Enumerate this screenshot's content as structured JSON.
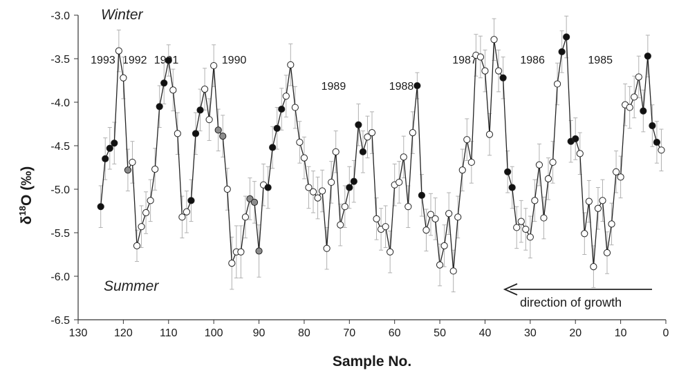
{
  "chart_data": {
    "type": "scatter",
    "xlabel": "Sample No.",
    "ylabel_symbol": "δ",
    "ylabel_superscript": "18",
    "ylabel_main": "O (‰)",
    "xlim": [
      130,
      0
    ],
    "xticks": [
      130,
      120,
      110,
      100,
      90,
      80,
      70,
      60,
      50,
      40,
      30,
      20,
      10,
      0
    ],
    "ylim": [
      -6.5,
      -3.0
    ],
    "yticks": [
      -3.0,
      -3.5,
      -4.0,
      -4.5,
      -5.0,
      -5.5,
      -6.0,
      -6.5
    ],
    "ytick_labels": [
      "-3.0",
      "-3.5",
      "-4.0",
      "-4.5",
      "-5.0",
      "-5.5",
      "-6.0",
      "-6.5"
    ],
    "grid": false,
    "season_labels": {
      "top": "Winter",
      "bottom": "Summer"
    },
    "direction_label": "direction of growth",
    "year_annotations": [
      {
        "label": "1993",
        "x": 124.5,
        "y": -3.5
      },
      {
        "label": "1992",
        "x": 117.5,
        "y": -3.5
      },
      {
        "label": "1991",
        "x": 110.5,
        "y": -3.5
      },
      {
        "label": "1990",
        "x": 95.5,
        "y": -3.5
      },
      {
        "label": "1989",
        "x": 73.5,
        "y": -3.8
      },
      {
        "label": "1988",
        "x": 58.5,
        "y": -3.8
      },
      {
        "label": "1987",
        "x": 44.5,
        "y": -3.5
      },
      {
        "label": "1986",
        "x": 29.5,
        "y": -3.5
      },
      {
        "label": "1985",
        "x": 14.5,
        "y": -3.5
      }
    ],
    "marker_colors": {
      "open": "#ffffff",
      "filled": "#111111",
      "gray": "#8c8c8c"
    },
    "line_color": "#222222",
    "errorbar_color": "#b0b0b0",
    "series": [
      {
        "x": [
          125,
          124,
          123,
          122,
          121,
          120,
          119,
          118,
          117,
          116,
          115,
          114,
          113,
          112,
          111,
          110,
          109,
          108,
          107,
          106,
          105,
          104,
          103,
          102,
          101,
          100,
          99,
          98,
          97,
          96,
          95,
          94,
          93,
          92,
          91,
          90,
          89,
          88,
          87,
          86,
          85,
          84,
          83,
          82,
          81,
          80,
          79,
          78,
          77,
          76,
          75,
          74,
          73,
          72,
          71,
          70,
          69,
          68,
          67,
          66,
          65,
          64,
          63,
          62,
          61,
          60,
          59,
          58,
          57,
          56,
          55,
          54,
          53,
          52,
          51,
          50,
          49,
          48,
          47,
          46,
          45,
          44,
          43,
          42,
          41,
          40,
          39,
          38,
          37,
          36,
          35,
          34,
          33,
          32,
          31,
          30,
          29,
          28,
          27,
          26,
          25,
          24,
          23,
          22,
          21,
          20,
          19,
          18,
          17,
          16,
          15,
          14,
          13,
          12,
          11,
          10,
          9,
          8,
          7,
          6,
          5,
          4,
          3,
          2,
          1
        ],
        "y": [
          -5.2,
          -4.65,
          -4.53,
          -4.47,
          -3.41,
          -3.72,
          -4.78,
          -4.69,
          -5.65,
          -5.43,
          -5.27,
          -5.13,
          -4.77,
          -4.05,
          -3.78,
          -3.52,
          -3.86,
          -4.36,
          -5.32,
          -5.26,
          -5.13,
          -4.36,
          -4.09,
          -3.85,
          -4.2,
          -3.58,
          -4.32,
          -4.39,
          -5.0,
          -5.85,
          -5.72,
          -5.72,
          -5.32,
          -5.11,
          -5.15,
          -5.71,
          -4.95,
          -4.98,
          -4.52,
          -4.3,
          -4.08,
          -3.93,
          -3.57,
          -4.06,
          -4.46,
          -4.64,
          -4.98,
          -5.03,
          -5.1,
          -5.02,
          -5.68,
          -4.92,
          -4.57,
          -5.41,
          -5.2,
          -4.98,
          -4.91,
          -4.26,
          -4.57,
          -4.4,
          -4.35,
          -5.34,
          -5.46,
          -5.43,
          -5.72,
          -4.95,
          -4.92,
          -4.63,
          -5.2,
          -4.35,
          -3.81,
          -5.07,
          -5.47,
          -5.29,
          -5.34,
          -5.87,
          -5.65,
          -5.28,
          -5.94,
          -5.32,
          -4.78,
          -4.43,
          -4.69,
          -3.46,
          -3.48,
          -3.64,
          -4.37,
          -3.28,
          -3.64,
          -3.72,
          -4.8,
          -4.98,
          -5.44,
          -5.37,
          -5.46,
          -5.55,
          -5.13,
          -4.72,
          -5.33,
          -4.88,
          -4.69,
          -3.79,
          -3.42,
          -3.25,
          -4.45,
          -4.42,
          -4.59,
          -5.51,
          -5.14,
          -5.89,
          -5.22,
          -5.13,
          -5.73,
          -5.4,
          -4.8,
          -4.86,
          -4.03,
          -4.06,
          -3.94,
          -3.71,
          -4.1,
          -3.47,
          -4.27,
          -4.46,
          -4.55
        ],
        "marker": [
          "filled",
          "filled",
          "filled",
          "filled",
          "open",
          "open",
          "gray",
          "open",
          "open",
          "open",
          "open",
          "open",
          "open",
          "filled",
          "filled",
          "filled",
          "open",
          "open",
          "open",
          "open",
          "filled",
          "filled",
          "filled",
          "open",
          "open",
          "open",
          "gray",
          "gray",
          "open",
          "open",
          "open",
          "open",
          "open",
          "gray",
          "gray",
          "gray",
          "open",
          "filled",
          "filled",
          "filled",
          "filled",
          "open",
          "open",
          "open",
          "open",
          "open",
          "open",
          "open",
          "open",
          "open",
          "open",
          "open",
          "open",
          "open",
          "open",
          "filled",
          "filled",
          "filled",
          "filled",
          "open",
          "open",
          "open",
          "open",
          "open",
          "open",
          "open",
          "open",
          "open",
          "open",
          "open",
          "filled",
          "filled",
          "open",
          "open",
          "open",
          "open",
          "open",
          "open",
          "open",
          "open",
          "open",
          "open",
          "open",
          "open",
          "open",
          "open",
          "open",
          "open",
          "open",
          "filled",
          "filled",
          "filled",
          "open",
          "open",
          "open",
          "open",
          "open",
          "open",
          "open",
          "open",
          "open",
          "open",
          "filled",
          "filled",
          "filled",
          "filled",
          "open",
          "open",
          "open",
          "open",
          "open",
          "open",
          "open",
          "open",
          "open",
          "open",
          "open",
          "open",
          "open",
          "open",
          "filled",
          "filled",
          "filled",
          "filled"
        ],
        "error": [
          0.24,
          0.24,
          0.24,
          0.24,
          0.24,
          0.24,
          0.24,
          0.24,
          0.18,
          0.24,
          0.24,
          0.24,
          0.24,
          0.24,
          0.24,
          0.18,
          0.24,
          0.24,
          0.24,
          0.24,
          0.24,
          0.24,
          0.24,
          0.24,
          0.24,
          0.24,
          0.24,
          0.24,
          0.24,
          0.3,
          0.3,
          0.3,
          0.24,
          0.24,
          0.24,
          0.3,
          0.24,
          0.24,
          0.24,
          0.24,
          0.24,
          0.24,
          0.24,
          0.24,
          0.24,
          0.24,
          0.24,
          0.24,
          0.24,
          0.24,
          0.24,
          0.24,
          0.24,
          0.24,
          0.24,
          0.24,
          0.24,
          0.24,
          0.24,
          0.24,
          0.24,
          0.24,
          0.24,
          0.24,
          0.24,
          0.24,
          0.24,
          0.24,
          0.24,
          0.24,
          0.15,
          0.24,
          0.24,
          0.24,
          0.24,
          0.24,
          0.24,
          0.24,
          0.24,
          0.24,
          0.24,
          0.24,
          0.24,
          0.24,
          0.24,
          0.24,
          0.24,
          0.24,
          0.24,
          0.24,
          0.24,
          0.24,
          0.24,
          0.24,
          0.24,
          0.24,
          0.24,
          0.24,
          0.24,
          0.24,
          0.24,
          0.24,
          0.24,
          0.24,
          0.24,
          0.24,
          0.24,
          0.24,
          0.24,
          0.24,
          0.24,
          0.24,
          0.24,
          0.24,
          0.24,
          0.24,
          0.24,
          0.24,
          0.24,
          0.24,
          0.24,
          0.24,
          0.24,
          0.24,
          0.24
        ]
      }
    ]
  }
}
